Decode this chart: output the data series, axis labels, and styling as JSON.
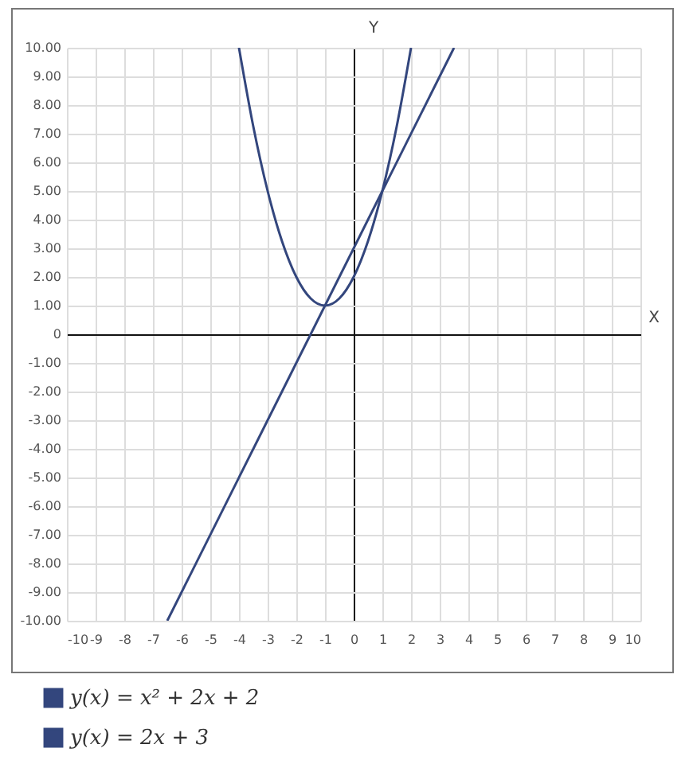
{
  "chart_data": {
    "type": "line",
    "xlabel": "X",
    "ylabel": "Y",
    "series": [
      {
        "name": "y(x) = x² + 2x + 2",
        "color": "#33467d",
        "x": [
          -4,
          -3.5,
          -3,
          -2.5,
          -2,
          -1.5,
          -1,
          -0.5,
          0,
          0.5,
          1,
          1.5,
          2
        ],
        "values": [
          10,
          7.25,
          5,
          3.25,
          2,
          1.25,
          1,
          1.25,
          2,
          3.25,
          5,
          7.25,
          10
        ]
      },
      {
        "name": "y(x) = 2x + 3",
        "color": "#33467d",
        "x": [
          -6.5,
          3.5
        ],
        "values": [
          -10,
          10
        ]
      }
    ],
    "xlim": [
      -10,
      10
    ],
    "ylim": [
      -10,
      10
    ],
    "xticks": [
      -10,
      -9,
      -8,
      -7,
      -6,
      -5,
      -4,
      -3,
      -2,
      -1,
      0,
      1,
      2,
      3,
      4,
      5,
      6,
      7,
      8,
      9,
      10
    ],
    "yticks": [
      {
        "value": -10,
        "label": "-10.00"
      },
      {
        "value": -9,
        "label": "-9.00"
      },
      {
        "value": -8,
        "label": "-8.00"
      },
      {
        "value": -7,
        "label": "-7.00"
      },
      {
        "value": -6,
        "label": "-6.00"
      },
      {
        "value": -5,
        "label": "-5.00"
      },
      {
        "value": -4,
        "label": "-4.00"
      },
      {
        "value": -3,
        "label": "-3.00"
      },
      {
        "value": -2,
        "label": "-2.00"
      },
      {
        "value": -1,
        "label": "-1.00"
      },
      0,
      {
        "value": 1,
        "label": "1.00"
      },
      {
        "value": 2,
        "label": "2.00"
      },
      {
        "value": 3,
        "label": "3.00"
      },
      {
        "value": 4,
        "label": "4.00"
      },
      {
        "value": 5,
        "label": "5.00"
      },
      {
        "value": 6,
        "label": "6.00"
      },
      {
        "value": 7,
        "label": "7.00"
      },
      {
        "value": 8,
        "label": "8.00"
      },
      {
        "value": 9,
        "label": "9.00"
      },
      {
        "value": 10,
        "label": "10.00"
      }
    ],
    "grid": true,
    "legend": "bottom",
    "marker": "none",
    "line_style": "solid"
  }
}
